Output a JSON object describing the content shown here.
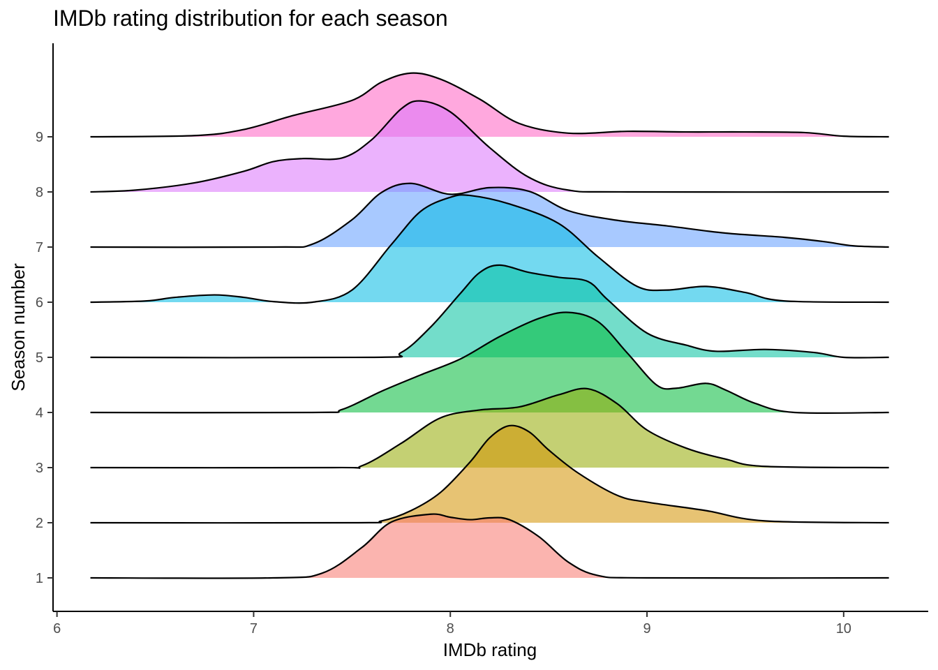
{
  "chart_data": {
    "type": "ridgeline",
    "title": "IMDb rating distribution for each season",
    "xlabel": "IMDb rating",
    "ylabel": "Season number",
    "xlim": [
      5.98,
      10.43
    ],
    "x_ticks": [
      6,
      7,
      8,
      9,
      10
    ],
    "y_ticks": [
      1,
      2,
      3,
      4,
      5,
      6,
      7,
      8,
      9
    ],
    "x_range": [
      6.17,
      10.23
    ],
    "ridge_scale": 1.1,
    "grid": false,
    "legend": "none",
    "series": [
      {
        "season": "1",
        "color": "#F8766D",
        "points": [
          [
            6.17,
            0
          ],
          [
            7.1,
            0
          ],
          [
            7.35,
            0.08
          ],
          [
            7.55,
            0.5
          ],
          [
            7.7,
            0.92
          ],
          [
            7.9,
            1.05
          ],
          [
            8.0,
            1.0
          ],
          [
            8.1,
            0.96
          ],
          [
            8.2,
            0.99
          ],
          [
            8.3,
            0.96
          ],
          [
            8.45,
            0.68
          ],
          [
            8.6,
            0.26
          ],
          [
            8.75,
            0.04
          ],
          [
            9.0,
            0
          ],
          [
            10.23,
            0
          ]
        ]
      },
      {
        "season": "2",
        "color": "#D39200",
        "points": [
          [
            6.17,
            0
          ],
          [
            7.5,
            0
          ],
          [
            7.65,
            0.03
          ],
          [
            7.8,
            0.2
          ],
          [
            7.95,
            0.5
          ],
          [
            8.1,
            1.0
          ],
          [
            8.2,
            1.4
          ],
          [
            8.3,
            1.6
          ],
          [
            8.4,
            1.5
          ],
          [
            8.5,
            1.2
          ],
          [
            8.65,
            0.82
          ],
          [
            8.85,
            0.45
          ],
          [
            9.0,
            0.34
          ],
          [
            9.3,
            0.2
          ],
          [
            9.6,
            0.03
          ],
          [
            10.23,
            0
          ]
        ]
      },
      {
        "season": "3",
        "color": "#93AA00",
        "points": [
          [
            6.17,
            0
          ],
          [
            7.4,
            0
          ],
          [
            7.55,
            0.03
          ],
          [
            7.75,
            0.4
          ],
          [
            7.95,
            0.82
          ],
          [
            8.15,
            0.95
          ],
          [
            8.35,
            1.0
          ],
          [
            8.55,
            1.2
          ],
          [
            8.7,
            1.3
          ],
          [
            8.85,
            1.05
          ],
          [
            9.0,
            0.62
          ],
          [
            9.2,
            0.32
          ],
          [
            9.4,
            0.14
          ],
          [
            9.6,
            0.02
          ],
          [
            10.23,
            0
          ]
        ]
      },
      {
        "season": "4",
        "color": "#00BA38",
        "points": [
          [
            6.17,
            0
          ],
          [
            7.3,
            0
          ],
          [
            7.45,
            0.05
          ],
          [
            7.65,
            0.35
          ],
          [
            7.85,
            0.62
          ],
          [
            8.05,
            0.88
          ],
          [
            8.25,
            1.25
          ],
          [
            8.45,
            1.55
          ],
          [
            8.6,
            1.65
          ],
          [
            8.75,
            1.5
          ],
          [
            8.9,
            0.98
          ],
          [
            9.05,
            0.45
          ],
          [
            9.15,
            0.4
          ],
          [
            9.3,
            0.48
          ],
          [
            9.4,
            0.37
          ],
          [
            9.55,
            0.15
          ],
          [
            9.75,
            0
          ],
          [
            10.23,
            0
          ]
        ]
      },
      {
        "season": "5",
        "color": "#00C19F",
        "points": [
          [
            6.17,
            0
          ],
          [
            7.6,
            0
          ],
          [
            7.75,
            0.08
          ],
          [
            7.9,
            0.5
          ],
          [
            8.05,
            1.05
          ],
          [
            8.15,
            1.4
          ],
          [
            8.25,
            1.52
          ],
          [
            8.4,
            1.4
          ],
          [
            8.55,
            1.32
          ],
          [
            8.7,
            1.25
          ],
          [
            8.8,
            0.95
          ],
          [
            9.0,
            0.4
          ],
          [
            9.2,
            0.2
          ],
          [
            9.35,
            0.1
          ],
          [
            9.6,
            0.13
          ],
          [
            9.85,
            0.08
          ],
          [
            10.0,
            0
          ],
          [
            10.23,
            0
          ]
        ]
      },
      {
        "season": "6",
        "color": "#00B9E3",
        "points": [
          [
            6.17,
            0
          ],
          [
            6.45,
            0.02
          ],
          [
            6.6,
            0.08
          ],
          [
            6.8,
            0.12
          ],
          [
            6.95,
            0.08
          ],
          [
            7.1,
            0.01
          ],
          [
            7.3,
            0
          ],
          [
            7.5,
            0.2
          ],
          [
            7.7,
            0.95
          ],
          [
            7.85,
            1.5
          ],
          [
            8.0,
            1.73
          ],
          [
            8.1,
            1.76
          ],
          [
            8.3,
            1.62
          ],
          [
            8.55,
            1.3
          ],
          [
            8.75,
            0.75
          ],
          [
            8.95,
            0.26
          ],
          [
            9.1,
            0.2
          ],
          [
            9.3,
            0.26
          ],
          [
            9.5,
            0.16
          ],
          [
            9.7,
            0.02
          ],
          [
            10.23,
            0
          ]
        ]
      },
      {
        "season": "7",
        "color": "#619CFF",
        "points": [
          [
            6.17,
            0
          ],
          [
            7.1,
            0
          ],
          [
            7.3,
            0.05
          ],
          [
            7.5,
            0.45
          ],
          [
            7.65,
            0.9
          ],
          [
            7.8,
            1.05
          ],
          [
            8.0,
            0.87
          ],
          [
            8.2,
            0.98
          ],
          [
            8.4,
            0.92
          ],
          [
            8.6,
            0.6
          ],
          [
            8.85,
            0.44
          ],
          [
            9.1,
            0.35
          ],
          [
            9.4,
            0.23
          ],
          [
            9.7,
            0.16
          ],
          [
            9.9,
            0.09
          ],
          [
            10.05,
            0.02
          ],
          [
            10.23,
            0
          ]
        ]
      },
      {
        "season": "8",
        "color": "#DB72FB",
        "points": [
          [
            6.17,
            0
          ],
          [
            6.4,
            0.03
          ],
          [
            6.7,
            0.15
          ],
          [
            6.95,
            0.34
          ],
          [
            7.1,
            0.5
          ],
          [
            7.25,
            0.55
          ],
          [
            7.45,
            0.56
          ],
          [
            7.6,
            0.86
          ],
          [
            7.75,
            1.37
          ],
          [
            7.85,
            1.5
          ],
          [
            8.0,
            1.32
          ],
          [
            8.2,
            0.73
          ],
          [
            8.4,
            0.24
          ],
          [
            8.6,
            0.03
          ],
          [
            8.9,
            0
          ],
          [
            10.23,
            0
          ]
        ]
      },
      {
        "season": "9",
        "color": "#FF61C3",
        "points": [
          [
            6.17,
            0
          ],
          [
            6.7,
            0.02
          ],
          [
            6.95,
            0.12
          ],
          [
            7.2,
            0.35
          ],
          [
            7.5,
            0.6
          ],
          [
            7.65,
            0.9
          ],
          [
            7.8,
            1.05
          ],
          [
            7.95,
            0.95
          ],
          [
            8.15,
            0.62
          ],
          [
            8.35,
            0.22
          ],
          [
            8.6,
            0.06
          ],
          [
            8.9,
            0.09
          ],
          [
            9.2,
            0.08
          ],
          [
            9.5,
            0.08
          ],
          [
            9.8,
            0.07
          ],
          [
            10.0,
            0.01
          ],
          [
            10.23,
            0
          ]
        ]
      }
    ]
  }
}
